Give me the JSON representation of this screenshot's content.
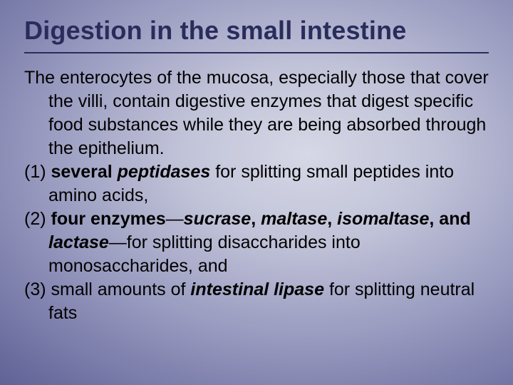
{
  "slide": {
    "title": "Digestion in the small intestine",
    "title_color": "#2a2c5c",
    "title_fontsize": 36,
    "underline_color": "#2a2c5c",
    "body_fontsize": 25,
    "body_color": "#000000",
    "background": {
      "type": "radial-gradient",
      "stops": [
        "#d6d8e6",
        "#c0c2d8",
        "#9698be",
        "#6a6c9e",
        "#4a4c84",
        "#383a72",
        "#30326a"
      ]
    },
    "intro": "The enterocytes of the mucosa, especially those that cover the villi,  contain digestive enzymes that digest specific food substances while they are being absorbed through the epithelium.",
    "items": [
      {
        "num": "(1) ",
        "lead_bold": "several ",
        "term": "peptidases ",
        "rest": "for splitting small peptides into amino acids,"
      },
      {
        "num": "(2) ",
        "lead_bold": "four enzymes",
        "dash1": "—",
        "term1": "sucrase",
        "c1": ", ",
        "term2": "maltase",
        "c2": ", ",
        "term3": "isomaltase",
        "c3": ", ",
        "and_txt": "and ",
        "term4": "lactase",
        "dash2": "—",
        "rest": "for splitting disaccharides into monosaccharides, and"
      },
      {
        "num": "(3) ",
        "lead": "small amounts of ",
        "term": "intestinal lipase ",
        "rest": "for splitting neutral fats"
      }
    ]
  }
}
